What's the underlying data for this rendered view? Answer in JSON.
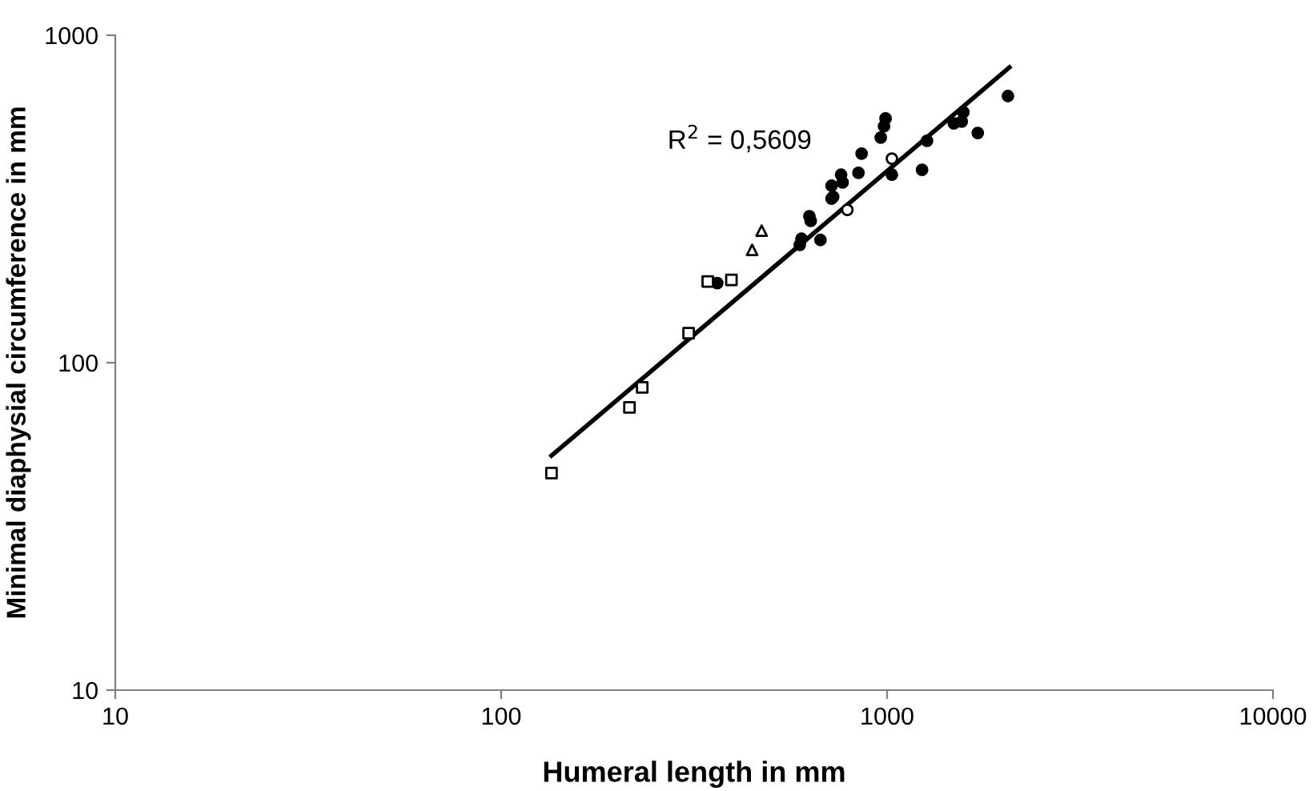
{
  "chart_data": {
    "type": "scatter",
    "xlabel": "Humeral length in mm",
    "ylabel": "Minimal diaphysial circumference in mm",
    "log": "xy",
    "grid": false,
    "legend": false,
    "xlim": [
      10,
      10000
    ],
    "ylim": [
      10,
      1000
    ],
    "xticks": [
      10,
      100,
      1000,
      10000
    ],
    "yticks": [
      10,
      100,
      1000
    ],
    "annotations": [
      "R$^{2}$ = 0,5609"
    ],
    "series": [
      {
        "marker": "circle",
        "color": "#000000",
        "x": [
          363,
          600,
          594,
          629,
          634,
          672,
          718,
          725,
          718,
          760,
          767,
          843,
          859,
          1029,
          963,
          982,
          991,
          1269,
          1232,
          1489,
          1577,
          1561,
          1718,
          2057
        ],
        "values": [
          175,
          239,
          229,
          280,
          271,
          237,
          347,
          321,
          317,
          375,
          355,
          380,
          435,
          375,
          487,
          527,
          557,
          476,
          388,
          538,
          582,
          545,
          503,
          652
        ]
      },
      {
        "marker": "circle",
        "color": "#ffffff",
        "x": [
          789,
          1029
        ],
        "values": [
          293,
          420
        ]
      },
      {
        "marker": "square",
        "color": "#ffffff",
        "x": [
          135,
          215,
          232,
          306,
          343,
          395
        ],
        "values": [
          46,
          73,
          84,
          123,
          177,
          179
        ]
      },
      {
        "marker": "triangle",
        "color": "#ffffff",
        "x": [
          447,
          473
        ],
        "values": [
          221,
          253
        ]
      },
      {
        "type": "line",
        "marker": "none",
        "line_style": "solid",
        "color": "#000000",
        "x": [
          135,
          2075
        ],
        "values": [
          52,
          798
        ]
      }
    ]
  }
}
